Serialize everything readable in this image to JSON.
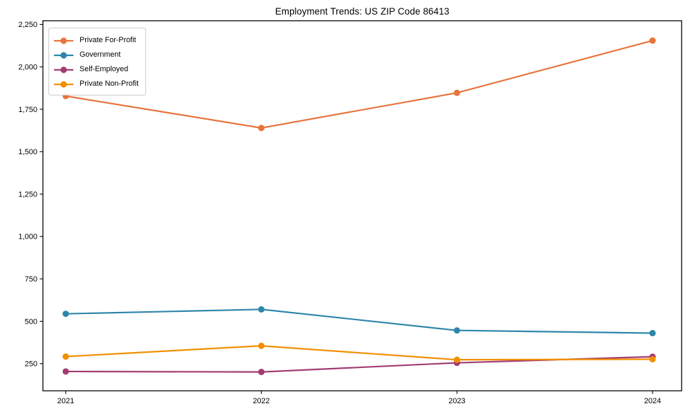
{
  "figure": {
    "title": "Employment Trends: US ZIP Code 86413"
  },
  "chart_data": {
    "type": "line",
    "title": "Employment Trends: US ZIP Code 86413",
    "xlabel": "",
    "ylabel": "",
    "categories": [
      "2021",
      "2022",
      "2023",
      "2024"
    ],
    "series": [
      {
        "name": "Private For-Profit",
        "color": "#E8743B",
        "values": [
          1828,
          1640,
          1847,
          2155
        ]
      },
      {
        "name": "Government",
        "color": "#2E86AB",
        "values": [
          544,
          570,
          446,
          430
        ]
      },
      {
        "name": "Self-Employed",
        "color": "#A23B72",
        "values": [
          204,
          201,
          255,
          291
        ]
      },
      {
        "name": "Private Non-Profit",
        "color": "#F18F01",
        "values": [
          292,
          355,
          273,
          276
        ]
      }
    ],
    "y_ticks": [
      250,
      500,
      750,
      1000,
      1250,
      1500,
      1750,
      2000,
      2250
    ],
    "y_tick_labels": [
      "250",
      "500",
      "750",
      "1,000",
      "1,250",
      "1,500",
      "1,750",
      "2,000",
      "2,250"
    ],
    "ylim": [
      90,
      2272
    ],
    "grid": false,
    "legend_position": "upper-left",
    "marker": "circle",
    "axis_color": "#000000"
  }
}
